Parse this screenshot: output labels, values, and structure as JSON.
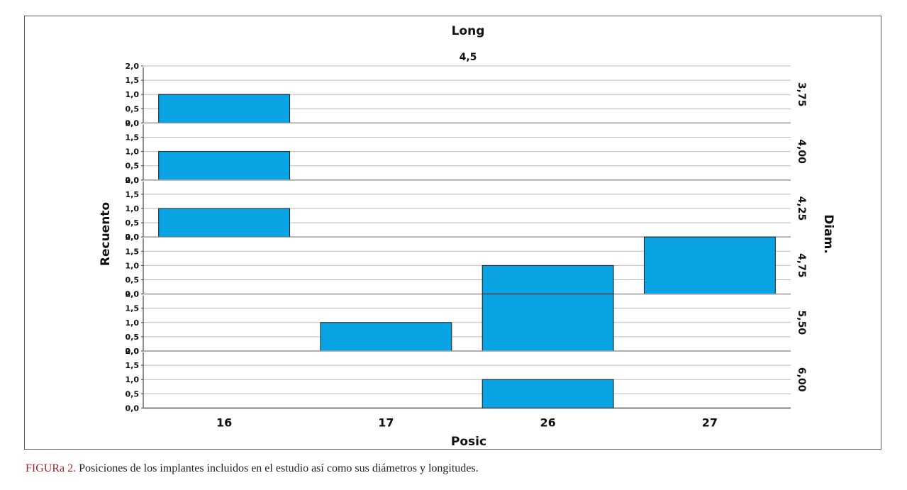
{
  "chart_data": {
    "type": "bar",
    "title": "Long",
    "column_facet_label": "4,5",
    "row_facet_title": "Diam.",
    "xlabel": "Posic",
    "ylabel": "Recuento",
    "categories": [
      "16",
      "17",
      "26",
      "27"
    ],
    "ylim": [
      0,
      2
    ],
    "yticks": [
      "0,0",
      "0,5",
      "1,0",
      "1,5",
      "2,0"
    ],
    "ytick_values": [
      0,
      0.5,
      1,
      1.5,
      2
    ],
    "grid": true,
    "bar_color": "#0aa3e3",
    "panels": [
      {
        "label": "3,75",
        "values": [
          1,
          0,
          0,
          0
        ]
      },
      {
        "label": "4,00",
        "values": [
          1,
          0,
          0,
          0
        ]
      },
      {
        "label": "4,25",
        "values": [
          1,
          0,
          0,
          0
        ]
      },
      {
        "label": "4,75",
        "values": [
          0,
          0,
          1,
          2
        ]
      },
      {
        "label": "5,50",
        "values": [
          0,
          1,
          2,
          0
        ]
      },
      {
        "label": "6,00",
        "values": [
          0,
          0,
          1,
          0
        ]
      }
    ]
  },
  "caption": {
    "label": "FIGURa 2.",
    "text": " Posiciones de los implantes incluidos en el estudio así como sus diámetros y longitudes."
  }
}
